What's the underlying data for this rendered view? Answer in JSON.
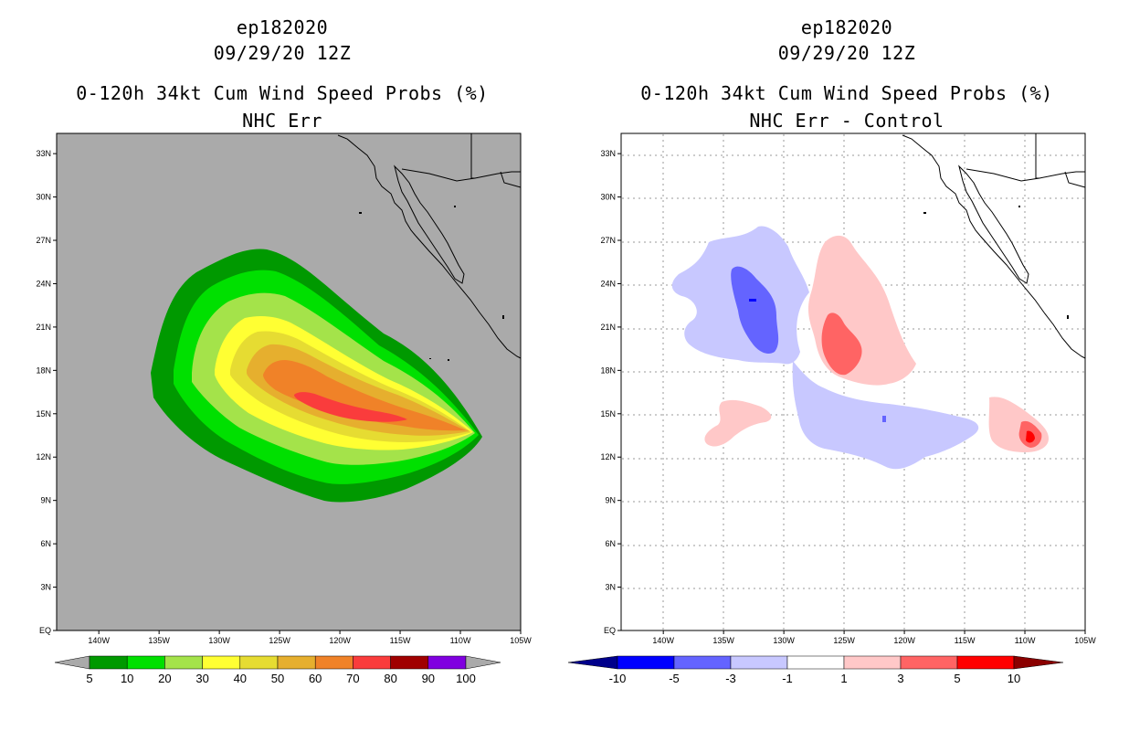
{
  "panels": [
    {
      "storm_id": "ep182020",
      "datetime": "09/29/20 12Z",
      "product": "0-120h 34kt Cum Wind Speed Probs (%)",
      "subtitle": "NHC Err",
      "colorbar": {
        "labels": [
          "5",
          "10",
          "20",
          "30",
          "40",
          "50",
          "60",
          "70",
          "80",
          "90",
          "100"
        ],
        "colors": [
          "#009900",
          "#00e000",
          "#a4e34a",
          "#ffff33",
          "#e6dc32",
          "#e6af2e",
          "#f08228",
          "#fa3c3c",
          "#a00000",
          "#8000e0"
        ],
        "under_color": "#aaaaaa",
        "over_color": "#aaaaaa"
      }
    },
    {
      "storm_id": "ep182020",
      "datetime": "09/29/20 12Z",
      "product": "0-120h 34kt Cum Wind Speed Probs (%)",
      "subtitle": "NHC Err - Control",
      "colorbar": {
        "labels": [
          "-10",
          "-5",
          "-3",
          "-1",
          "1",
          "3",
          "5",
          "10"
        ],
        "colors": [
          "#0000ff",
          "#6464ff",
          "#c8c8ff",
          "#ffffff",
          "#ffc8c8",
          "#ff6464",
          "#ff0000"
        ],
        "under_color": "#00008b",
        "over_color": "#8b0000"
      }
    }
  ],
  "axes": {
    "lat_labels": [
      "EQ",
      "3N",
      "6N",
      "9N",
      "12N",
      "15N",
      "18N",
      "21N",
      "24N",
      "27N",
      "30N",
      "33N"
    ],
    "lon_labels": [
      "140W",
      "135W",
      "130W",
      "125W",
      "120W",
      "115W",
      "110W",
      "105W"
    ]
  },
  "map_colors": {
    "left_background": "#aaaaaa",
    "right_background": "#ffffff"
  }
}
